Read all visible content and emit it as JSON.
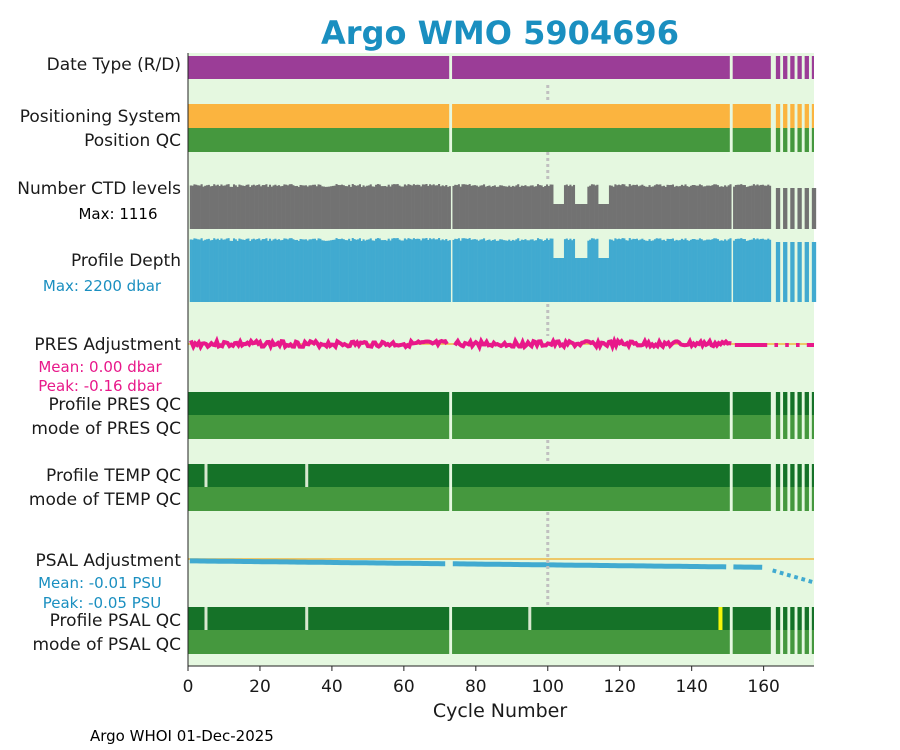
{
  "chart_data": {
    "type": "timeline",
    "title": "Argo WMO 5904696",
    "xlabel": "Cycle Number",
    "xlim": [
      0,
      174
    ],
    "xticks": [
      "0",
      "20",
      "40",
      "60",
      "80",
      "100",
      "120",
      "140",
      "160"
    ],
    "xtick_values": [
      0,
      20,
      40,
      60,
      80,
      100,
      120,
      140,
      160
    ],
    "reference_line_cycle": 100,
    "gap_cycles": [
      73,
      151
    ],
    "cycle_end": 174,
    "sparse_start": 162,
    "colors": {
      "background": "#e5f8e0",
      "purple": "#9b3d97",
      "orange": "#fbb43f",
      "qc_good": "#45983e",
      "qc_dark": "#157228",
      "gray": "#727272",
      "blue": "#41aad0",
      "pink": "#e8188a",
      "title": "#1a8fc0",
      "ref_line": "#c0c0c0",
      "zero_line": "#f0b840",
      "yellow": "#f5f50a"
    },
    "rows": [
      {
        "label": "Date Type (R/D)"
      },
      {
        "label": "Positioning System"
      },
      {
        "label": "Position QC"
      },
      {
        "label": "Number CTD levels",
        "sub": "Max: 1116"
      },
      {
        "label": "Profile Depth",
        "sub": "Max: 2200 dbar"
      },
      {
        "label": "PRES Adjustment",
        "sub": "Mean: 0.00 dbar",
        "sub2": "Peak: -0.16 dbar"
      },
      {
        "label": "Profile PRES QC"
      },
      {
        "label": "mode of PRES QC"
      },
      {
        "label": "Profile TEMP QC"
      },
      {
        "label": "mode of TEMP QC"
      },
      {
        "label": "PSAL Adjustment",
        "sub": "Mean: -0.01 PSU",
        "sub2": "Peak: -0.05 PSU"
      },
      {
        "label": "Profile PSAL QC"
      },
      {
        "label": "mode of PSAL QC"
      }
    ],
    "pres_adjustment": {
      "mean_dbar": 0.0,
      "peak_dbar": -0.16
    },
    "psal_adjustment": {
      "mean_psu": -0.01,
      "peak_psu": -0.05,
      "start_psu": -0.004,
      "end_psu": -0.05
    },
    "ctd_levels": {
      "max": 1116
    },
    "profile_depth": {
      "max_dbar": 2200
    },
    "temp_qc_gaps": [
      5,
      33
    ],
    "psal_qc_gaps": [
      5,
      33,
      95
    ],
    "psal_qc_flagged_cycle": 148
  },
  "footer": "Argo WHOI 01-Dec-2025"
}
